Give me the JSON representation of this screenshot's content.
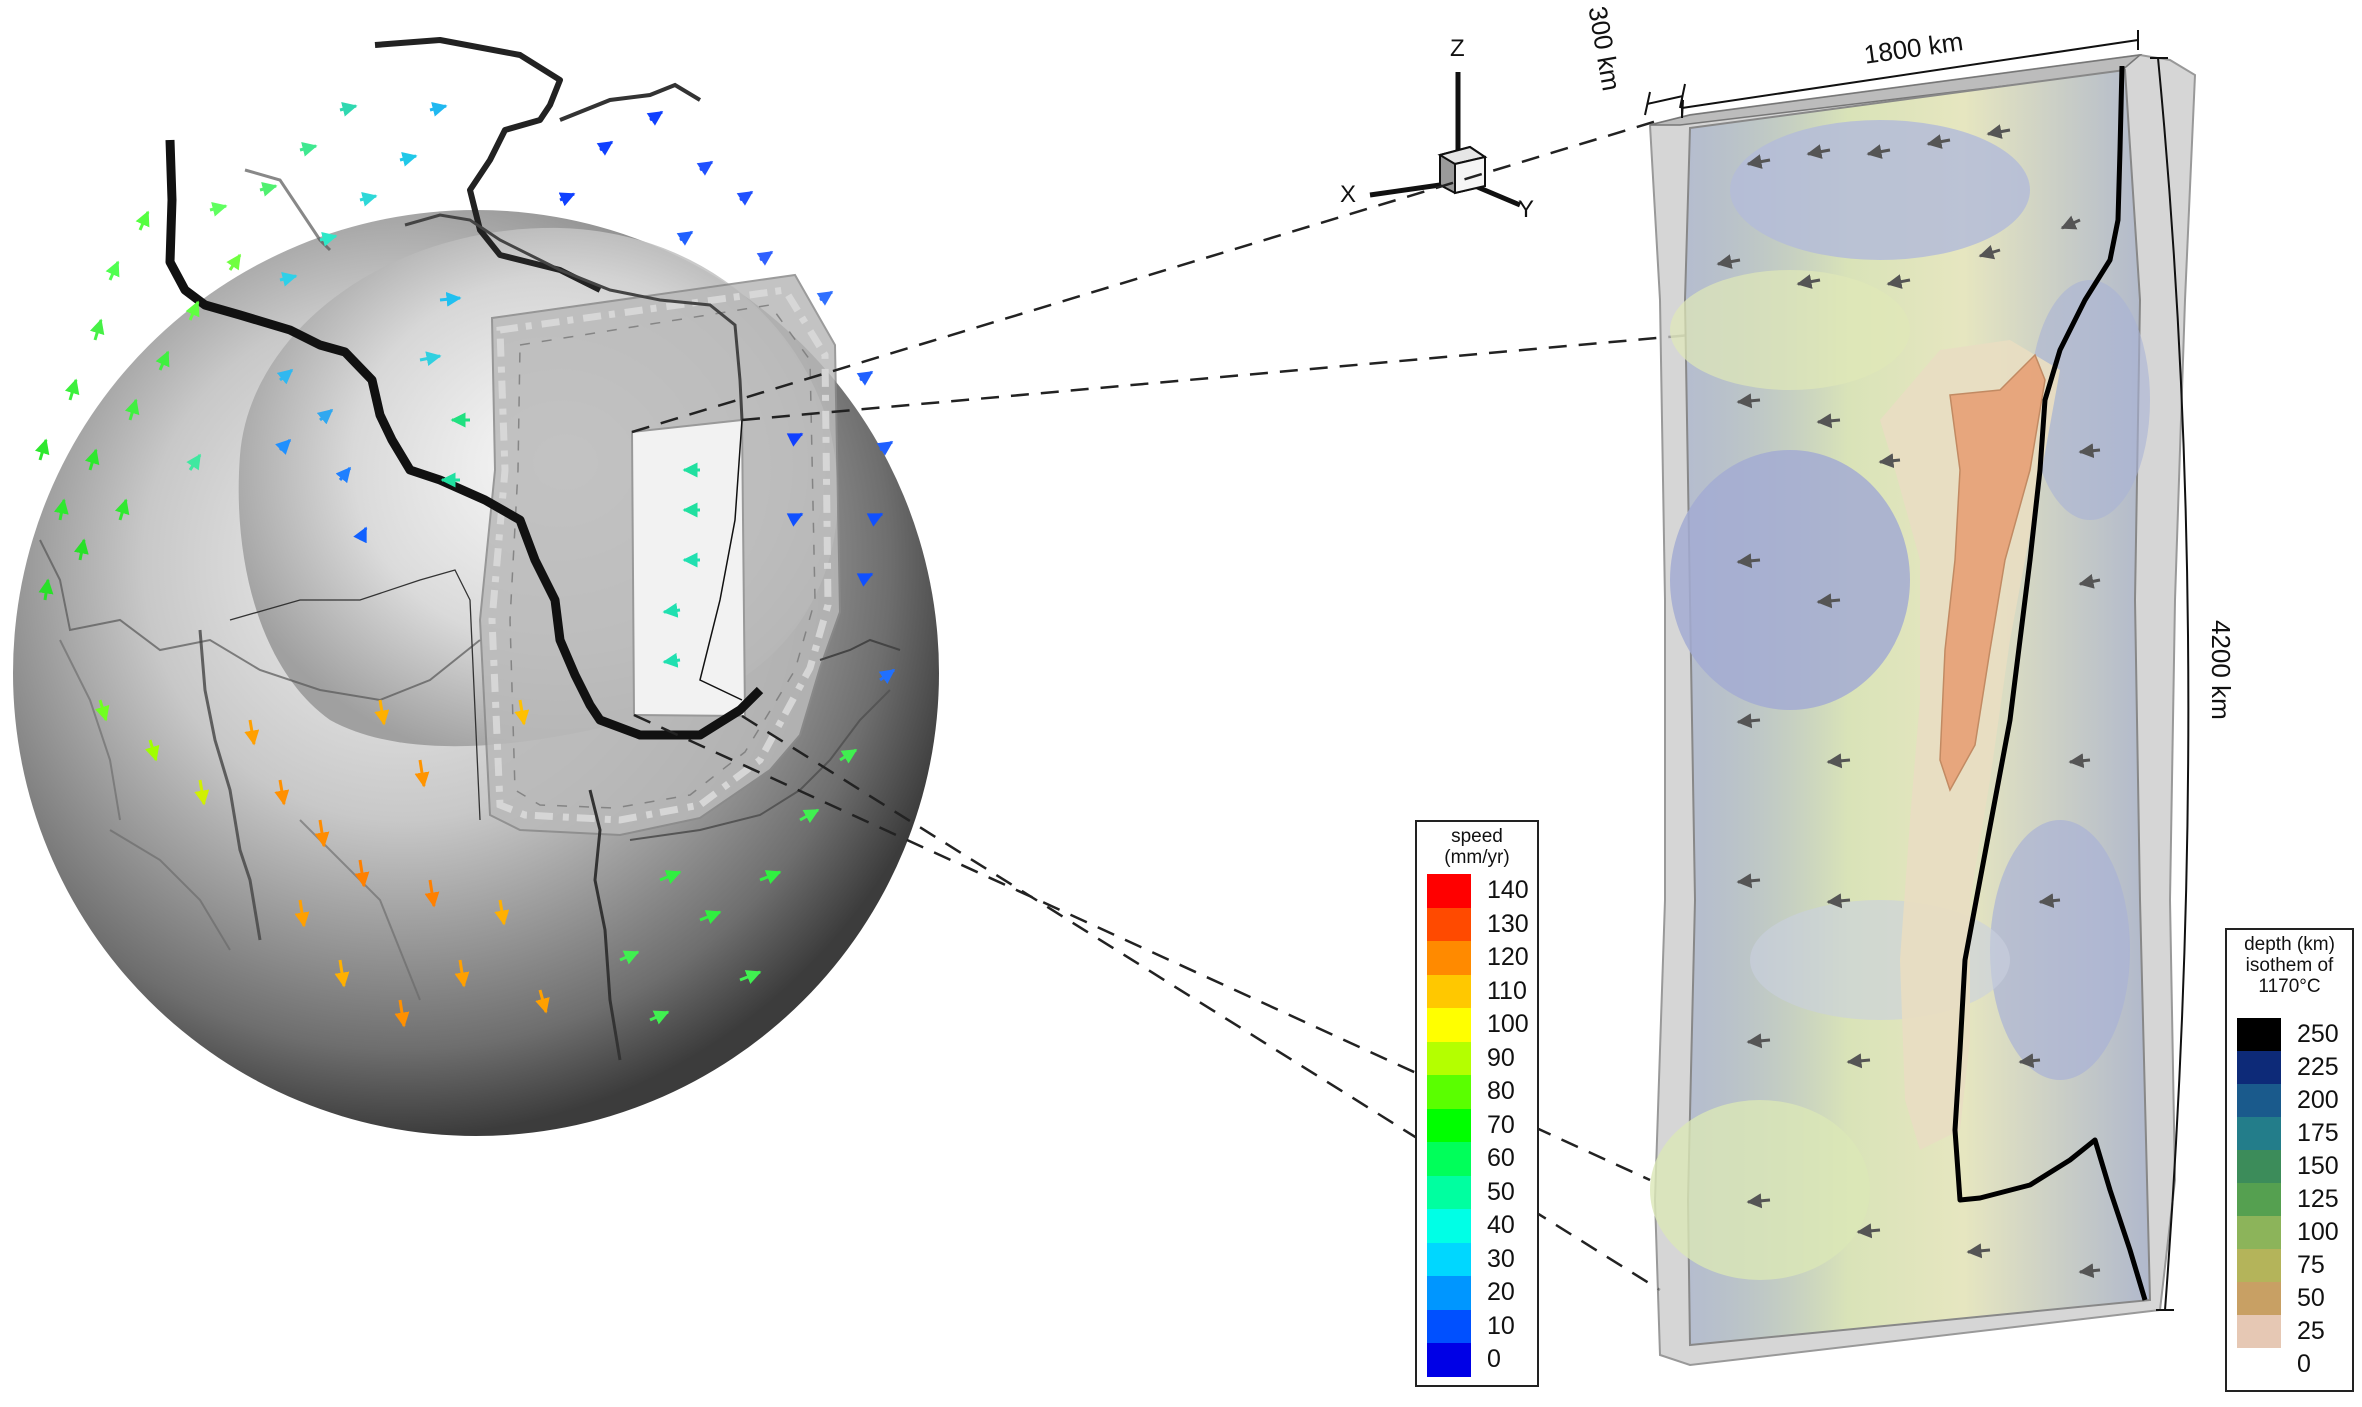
{
  "axes_triad": {
    "z_label": "Z",
    "x_label": "X",
    "y_label": "Y"
  },
  "dimensions": {
    "depth_label": "300 km",
    "width_label": "1800 km",
    "length_label": "4200 km"
  },
  "speed_legend": {
    "title_line1": "speed",
    "title_line2": "(mm/yr)",
    "entries": [
      {
        "value": "140",
        "color": "#ff0000"
      },
      {
        "value": "130",
        "color": "#ff4a00"
      },
      {
        "value": "120",
        "color": "#ff8a00"
      },
      {
        "value": "110",
        "color": "#ffc800"
      },
      {
        "value": "100",
        "color": "#ffff00"
      },
      {
        "value": "90",
        "color": "#b4ff00"
      },
      {
        "value": "80",
        "color": "#5aff00"
      },
      {
        "value": "70",
        "color": "#00ff00"
      },
      {
        "value": "60",
        "color": "#00ff5a"
      },
      {
        "value": "50",
        "color": "#00ffa0"
      },
      {
        "value": "40",
        "color": "#00ffe6"
      },
      {
        "value": "30",
        "color": "#00d7ff"
      },
      {
        "value": "20",
        "color": "#0096ff"
      },
      {
        "value": "10",
        "color": "#0050ff"
      },
      {
        "value": "0",
        "color": "#0000e6"
      }
    ]
  },
  "depth_legend": {
    "title_line1": "depth (km)",
    "title_line2": "isothem of",
    "title_line3": "1170°C",
    "entries": [
      {
        "value": "250",
        "color": "#000000"
      },
      {
        "value": "225",
        "color": "#0d2a78"
      },
      {
        "value": "200",
        "color": "#1a5a8c"
      },
      {
        "value": "175",
        "color": "#237d8a"
      },
      {
        "value": "150",
        "color": "#3c8c5a"
      },
      {
        "value": "125",
        "color": "#55a050"
      },
      {
        "value": "100",
        "color": "#8cb45a"
      },
      {
        "value": "75",
        "color": "#b4b45a"
      },
      {
        "value": "50",
        "color": "#c8a064"
      },
      {
        "value": "25",
        "color": "#e6c8b4"
      },
      {
        "value": "0",
        "color": "#ffffff"
      }
    ]
  }
}
